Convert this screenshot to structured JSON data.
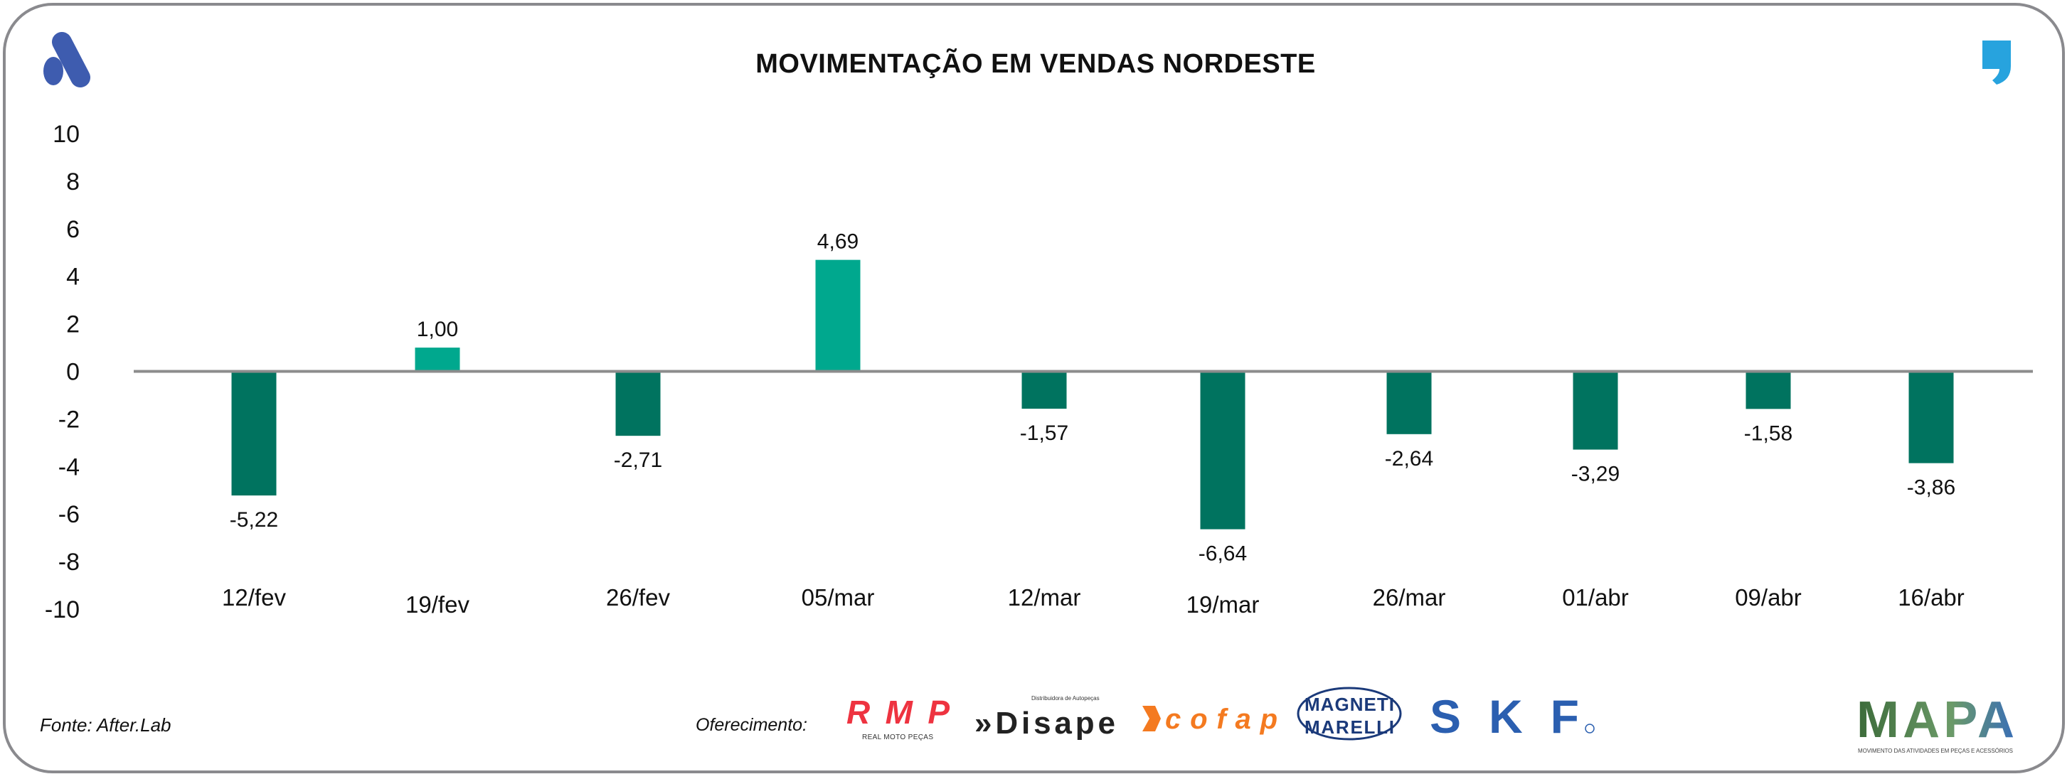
{
  "chart_data": {
    "type": "bar",
    "title": "MOVIMENTAÇÃO EM VENDAS NORDESTE",
    "categories": [
      "12/fev",
      "19/fev",
      "26/fev",
      "05/mar",
      "12/mar",
      "19/mar",
      "26/mar",
      "01/abr",
      "09/abr",
      "16/abr"
    ],
    "values": [
      -5.22,
      1.0,
      -2.71,
      4.69,
      -1.57,
      -6.64,
      -2.64,
      -3.29,
      -1.58,
      -3.86
    ],
    "value_labels": [
      "-5,22",
      "1,00",
      "-2,71",
      "4,69",
      "-1,57",
      "-6,64",
      "-2,64",
      "-3,29",
      "-1,58",
      "-3,86"
    ],
    "ylim": [
      -10,
      10
    ],
    "yticks": [
      10,
      8,
      6,
      4,
      2,
      0,
      -2,
      -4,
      -6,
      -8,
      -10
    ],
    "xlabel": "",
    "ylabel": "",
    "grid": false,
    "legend": "none",
    "colors": {
      "positive": "#00A88E",
      "negative": "#00735F",
      "axis": "#8C8C8C"
    }
  },
  "footer": {
    "source": "Fonte: After.Lab",
    "sponsor_label": "Oferecimento:",
    "sponsors": [
      "RMP REAL MOTO PEÇAS",
      "Disape Distribuidora de Autopeças",
      "cofap",
      "MAGNETI MARELLI",
      "SKF"
    ],
    "brand": "MAPA",
    "brand_tagline": "MOVIMENTO DAS ATIVIDADES EM PEÇAS E ACESSÓRIOS"
  },
  "logos": {
    "left": "afterlab-logo",
    "right": "quote-logo"
  }
}
